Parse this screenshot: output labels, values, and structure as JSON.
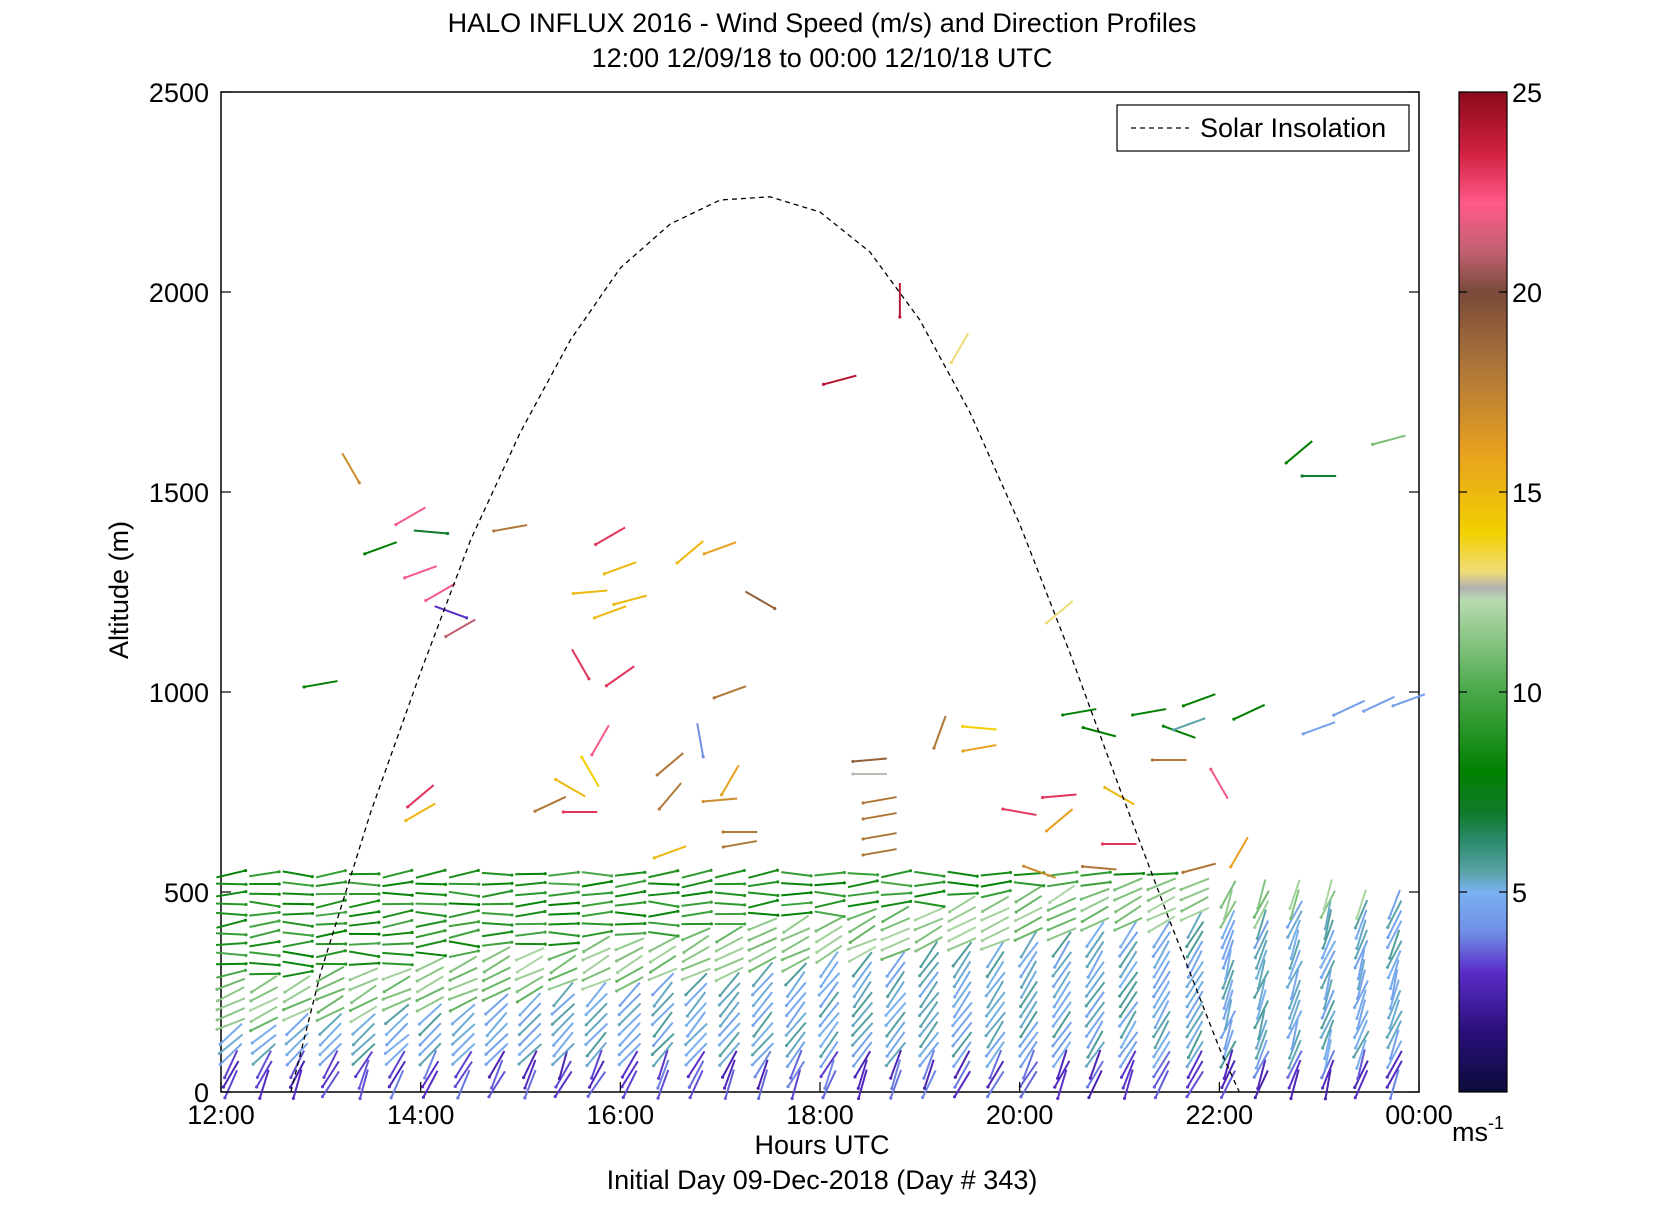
{
  "chart_data": {
    "type": "quiver",
    "title": "HALO INFLUX 2016 - Wind Speed (m/s) and Direction Profiles",
    "subtitle": "12:00 12/09/18 to 00:00 12/10/18  UTC",
    "xlabel": "Hours UTC",
    "ylabel": "Altitude (m)",
    "footer": "Initial Day 09-Dec-2018 (Day # 343)",
    "xlim": [
      12,
      24
    ],
    "ylim": [
      0,
      2500
    ],
    "x_ticks": [
      12,
      14,
      16,
      18,
      20,
      22,
      24
    ],
    "x_tick_labels": [
      "12:00",
      "14:00",
      "16:00",
      "18:00",
      "20:00",
      "22:00",
      "00:00"
    ],
    "y_ticks": [
      0,
      500,
      1000,
      1500,
      2000,
      2500
    ],
    "y_tick_labels": [
      "0",
      "500",
      "1000",
      "1500",
      "2000",
      "2500"
    ],
    "legend": {
      "entries": [
        "Solar Insolation"
      ],
      "placement": "top-right",
      "line_style": "dashed"
    },
    "colorbar": {
      "min": 0,
      "max": 25,
      "ticks": [
        5,
        10,
        15,
        20,
        25
      ],
      "tick_labels": [
        "5",
        "10",
        "15",
        "20",
        "25"
      ],
      "unit_label": "ms",
      "unit_exponent": "-1",
      "stops": [
        [
          0,
          "#0b0b3b"
        ],
        [
          1.5,
          "#2a0f7a"
        ],
        [
          3,
          "#5a2dc8"
        ],
        [
          4,
          "#6f8fe6"
        ],
        [
          5,
          "#7ab1f0"
        ],
        [
          5.5,
          "#5aa3a8"
        ],
        [
          6.3,
          "#2a8a6a"
        ],
        [
          7,
          "#0f7a2a"
        ],
        [
          8,
          "#008000"
        ],
        [
          10,
          "#4aa84a"
        ],
        [
          12.3,
          "#b8dbb0"
        ],
        [
          12.6,
          "#b0b0b0"
        ],
        [
          13,
          "#f0dc78"
        ],
        [
          14,
          "#f2d000"
        ],
        [
          16,
          "#e8a020"
        ],
        [
          18,
          "#b07838"
        ],
        [
          20,
          "#7a4a3a"
        ],
        [
          21,
          "#c06070"
        ],
        [
          22.2,
          "#ff5a8a"
        ],
        [
          23.5,
          "#d02040"
        ],
        [
          25,
          "#8a0a1a"
        ]
      ]
    },
    "solar_insolation": {
      "x": [
        12.7,
        13.0,
        13.5,
        14.0,
        14.5,
        15.0,
        15.5,
        16.0,
        16.5,
        17.0,
        17.5,
        18.0,
        18.5,
        19.0,
        19.5,
        20.0,
        20.5,
        21.0,
        21.5,
        22.0,
        22.2
      ],
      "y": [
        0,
        300,
        700,
        1050,
        1380,
        1650,
        1880,
        2060,
        2170,
        2230,
        2238,
        2200,
        2100,
        1930,
        1700,
        1420,
        1100,
        760,
        430,
        110,
        0
      ]
    },
    "arrows_shown": "wind vectors at altitudes 0-2000 m every ~20 min; speed encoded by color (ms-1)"
  }
}
